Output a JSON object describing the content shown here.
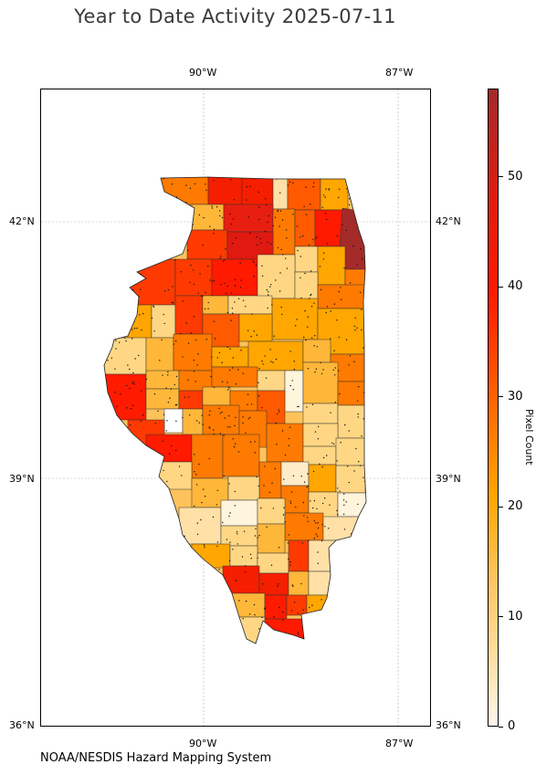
{
  "title": "Year to Date Activity 2025-07-11",
  "credit": "NOAA/NESDIS Hazard Mapping System",
  "map": {
    "longitude_labels": [
      "90°W",
      "87°W"
    ],
    "latitude_labels": [
      "42°N",
      "39°N",
      "36°N"
    ]
  },
  "colorbar": {
    "title": "Pixel Count",
    "ticks": [
      "0",
      "10",
      "20",
      "30",
      "40",
      "50"
    ],
    "range": [
      0,
      58
    ],
    "colors": [
      "#fff8ec",
      "#ffe0a6",
      "#fdc25a",
      "#ffa600",
      "#ff6a00",
      "#ff1a00",
      "#e21c0e",
      "#a52a2a"
    ]
  }
}
